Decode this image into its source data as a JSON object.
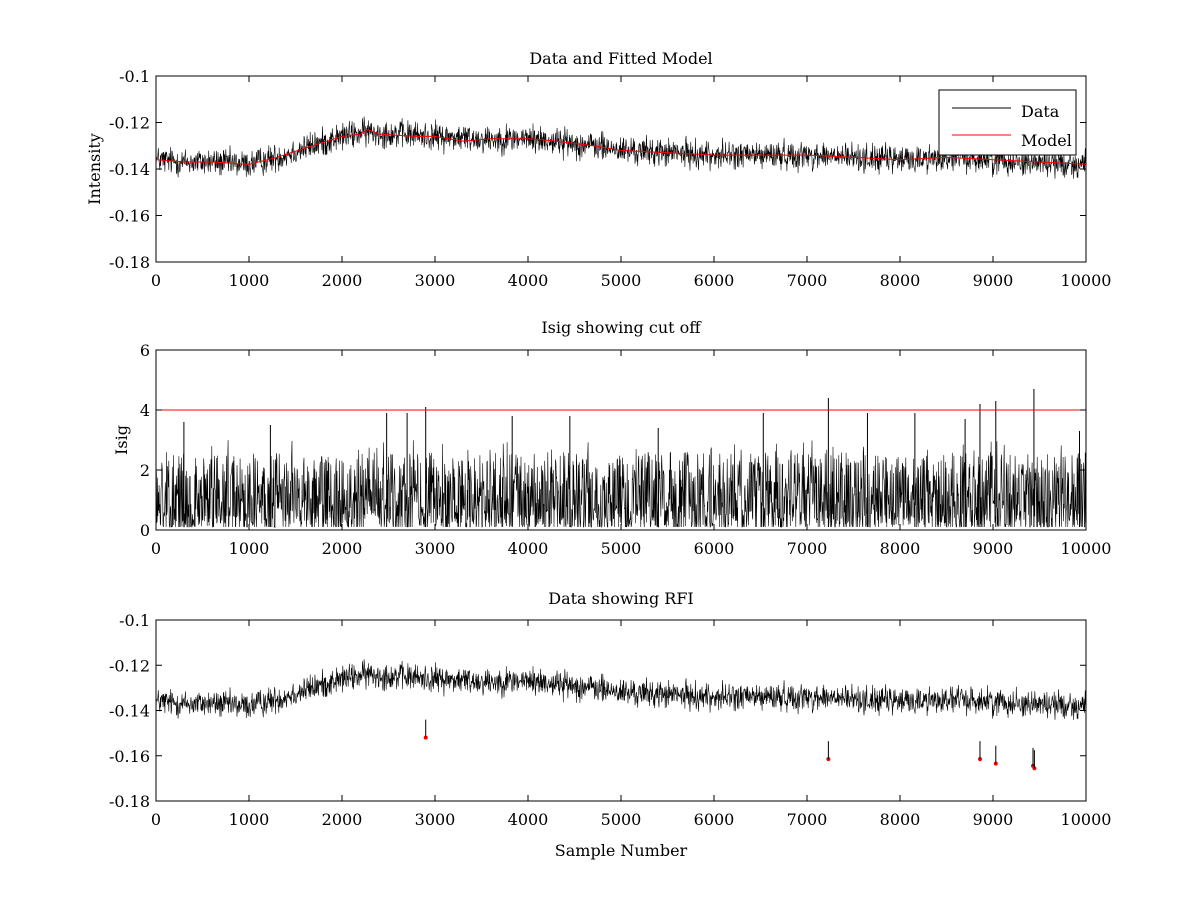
{
  "chart_data": [
    {
      "type": "line",
      "title": "Data and Fitted Model",
      "xlabel": "",
      "ylabel": "Intensity",
      "xlim": [
        0,
        10000
      ],
      "ylim": [
        -0.18,
        -0.1
      ],
      "xticks": [
        0,
        1000,
        2000,
        3000,
        4000,
        5000,
        6000,
        7000,
        8000,
        9000,
        10000
      ],
      "yticks": [
        -0.18,
        -0.16,
        -0.14,
        -0.12,
        -0.1
      ],
      "xtick_labels": [
        "0",
        "1000",
        "2000",
        "3000",
        "4000",
        "5000",
        "6000",
        "7000",
        "8000",
        "9000",
        "10000"
      ],
      "ytick_labels": [
        "-0.18",
        "-0.16",
        "-0.14",
        "-0.12",
        "-0.1"
      ],
      "grid": false,
      "legend": {
        "position": "top-right",
        "entries": [
          "Data",
          "Model"
        ]
      },
      "series": [
        {
          "name": "Data",
          "color": "#000000",
          "noise_amplitude": 0.009,
          "x": [
            0,
            300,
            600,
            1000,
            1300,
            1600,
            2000,
            2300,
            2600,
            3000,
            3500,
            4000,
            4300,
            4700,
            5000,
            5500,
            6000,
            6500,
            7000,
            7500,
            8000,
            8500,
            9000,
            9500,
            10000
          ],
          "y": [
            -0.136,
            -0.137,
            -0.137,
            -0.138,
            -0.135,
            -0.131,
            -0.126,
            -0.124,
            -0.125,
            -0.126,
            -0.127,
            -0.127,
            -0.128,
            -0.13,
            -0.132,
            -0.133,
            -0.134,
            -0.134,
            -0.134,
            -0.135,
            -0.136,
            -0.135,
            -0.136,
            -0.137,
            -0.138
          ]
        },
        {
          "name": "Model",
          "color": "#ff0000",
          "x": [
            0,
            300,
            600,
            1000,
            1300,
            1600,
            2000,
            2200,
            2270,
            2400,
            2800,
            3000,
            3300,
            3600,
            4000,
            4300,
            4700,
            5000,
            5500,
            6000,
            6500,
            7000,
            7500,
            8000,
            8500,
            9000,
            9500,
            10000
          ],
          "y": [
            -0.136,
            -0.137,
            -0.137,
            -0.138,
            -0.135,
            -0.131,
            -0.126,
            -0.125,
            -0.123,
            -0.125,
            -0.126,
            -0.126,
            -0.128,
            -0.127,
            -0.127,
            -0.128,
            -0.13,
            -0.132,
            -0.133,
            -0.134,
            -0.134,
            -0.134,
            -0.135,
            -0.136,
            -0.135,
            -0.136,
            -0.137,
            -0.138
          ]
        }
      ]
    },
    {
      "type": "line",
      "title": "Isig showing cut off",
      "xlabel": "",
      "ylabel": "Isig",
      "xlim": [
        0,
        10000
      ],
      "ylim": [
        0,
        6
      ],
      "xticks": [
        0,
        1000,
        2000,
        3000,
        4000,
        5000,
        6000,
        7000,
        8000,
        9000,
        10000
      ],
      "yticks": [
        0,
        2,
        4,
        6
      ],
      "xtick_labels": [
        "0",
        "1000",
        "2000",
        "3000",
        "4000",
        "5000",
        "6000",
        "7000",
        "8000",
        "9000",
        "10000"
      ],
      "ytick_labels": [
        "0",
        "2",
        "4",
        "6"
      ],
      "grid": false,
      "cutoff": {
        "value": 4,
        "color": "#ff0000"
      },
      "series": [
        {
          "color": "#000000",
          "typical_max": 2.6,
          "peaks": [
            {
              "x": 300,
              "y": 3.6
            },
            {
              "x": 1230,
              "y": 3.5
            },
            {
              "x": 2480,
              "y": 3.9
            },
            {
              "x": 2700,
              "y": 3.9
            },
            {
              "x": 2900,
              "y": 4.1
            },
            {
              "x": 3830,
              "y": 3.8
            },
            {
              "x": 4450,
              "y": 3.8
            },
            {
              "x": 5400,
              "y": 3.4
            },
            {
              "x": 6530,
              "y": 3.9
            },
            {
              "x": 7230,
              "y": 4.4
            },
            {
              "x": 7650,
              "y": 3.9
            },
            {
              "x": 8160,
              "y": 3.9
            },
            {
              "x": 8700,
              "y": 3.7
            },
            {
              "x": 8860,
              "y": 4.2
            },
            {
              "x": 9030,
              "y": 4.3
            },
            {
              "x": 9440,
              "y": 4.7
            },
            {
              "x": 9930,
              "y": 3.3
            }
          ]
        }
      ]
    },
    {
      "type": "line",
      "title": "Data showing RFI",
      "xlabel": "Sample Number",
      "ylabel": "",
      "xlim": [
        0,
        10000
      ],
      "ylim": [
        -0.18,
        -0.1
      ],
      "xticks": [
        0,
        1000,
        2000,
        3000,
        4000,
        5000,
        6000,
        7000,
        8000,
        9000,
        10000
      ],
      "yticks": [
        -0.18,
        -0.16,
        -0.14,
        -0.12,
        -0.1
      ],
      "xtick_labels": [
        "0",
        "1000",
        "2000",
        "3000",
        "4000",
        "5000",
        "6000",
        "7000",
        "8000",
        "9000",
        "10000"
      ],
      "ytick_labels": [
        "-0.18",
        "-0.16",
        "-0.14",
        "-0.12",
        "-0.1"
      ],
      "grid": false,
      "series": [
        {
          "color": "#000000",
          "noise_amplitude": 0.009,
          "x": [
            0,
            300,
            600,
            1000,
            1300,
            1600,
            2000,
            2300,
            2600,
            3000,
            3500,
            4000,
            4300,
            4700,
            5000,
            5500,
            6000,
            6500,
            7000,
            7500,
            8000,
            8500,
            9000,
            9500,
            10000
          ],
          "y": [
            -0.136,
            -0.137,
            -0.137,
            -0.138,
            -0.135,
            -0.131,
            -0.126,
            -0.124,
            -0.125,
            -0.126,
            -0.127,
            -0.127,
            -0.128,
            -0.13,
            -0.132,
            -0.133,
            -0.134,
            -0.134,
            -0.134,
            -0.135,
            -0.136,
            -0.135,
            -0.136,
            -0.137,
            -0.138
          ]
        }
      ],
      "rfi_points": {
        "color": "#ff0000",
        "points": [
          {
            "x": 2900,
            "y": -0.152
          },
          {
            "x": 7230,
            "y": -0.1615
          },
          {
            "x": 8860,
            "y": -0.1615
          },
          {
            "x": 9030,
            "y": -0.1635
          },
          {
            "x": 9430,
            "y": -0.1645
          },
          {
            "x": 9445,
            "y": -0.1655
          }
        ]
      }
    }
  ]
}
